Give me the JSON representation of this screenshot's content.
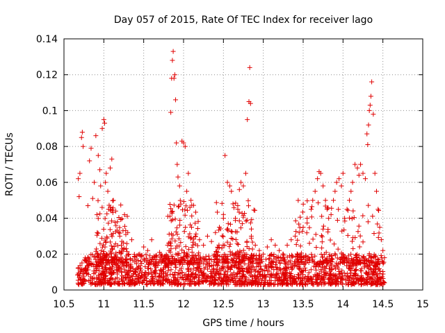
{
  "chart_data": {
    "type": "scatter",
    "title": "Day 057 of 2015, Rate Of TEC Index for receiver lago",
    "xlabel": "GPS time / hours",
    "ylabel": "ROTI / TECUs",
    "xlim": [
      10.5,
      15
    ],
    "ylim": [
      0,
      0.14
    ],
    "x_ticks": [
      10.5,
      11,
      11.5,
      12,
      12.5,
      13,
      13.5,
      14,
      14.5,
      15
    ],
    "x_tick_labels": [
      "10.5",
      "11",
      "11.5",
      "12",
      "12.5",
      "13",
      "13.5",
      "14",
      "14.5",
      "15"
    ],
    "y_ticks": [
      0,
      0.02,
      0.04,
      0.06,
      0.08,
      0.1,
      0.12,
      0.14
    ],
    "y_tick_labels": [
      "0",
      "0.02",
      "0.04",
      "0.06",
      "0.08",
      "0.1",
      "0.12",
      "0.14"
    ],
    "grid": true,
    "marker": "+",
    "color": "#e00000",
    "series": [
      {
        "name": "ROTI",
        "x": [
          10.68,
          10.69,
          10.7,
          10.72,
          10.73,
          10.74,
          10.8,
          10.82,
          10.84,
          10.86,
          10.88,
          10.9,
          10.93,
          10.95,
          10.96,
          10.98,
          11.0,
          11.01,
          11.02,
          11.03,
          11.05,
          11.06,
          11.08,
          11.1,
          11.12,
          11.15,
          11.17,
          11.2,
          11.22,
          11.3,
          11.35,
          11.45,
          11.5,
          11.55,
          11.6,
          11.7,
          11.8,
          11.84,
          11.85,
          11.86,
          11.87,
          11.88,
          11.89,
          11.9,
          11.91,
          11.92,
          11.93,
          11.95,
          11.98,
          12.0,
          12.02,
          12.04,
          12.06,
          12.08,
          12.1,
          12.15,
          12.2,
          12.25,
          12.3,
          12.35,
          12.4,
          12.45,
          12.5,
          12.52,
          12.55,
          12.58,
          12.6,
          12.62,
          12.65,
          12.68,
          12.7,
          12.72,
          12.75,
          12.78,
          12.8,
          12.82,
          12.83,
          12.84,
          12.85,
          12.9,
          12.95,
          13.0,
          13.05,
          13.1,
          13.15,
          13.2,
          13.25,
          13.3,
          13.35,
          13.4,
          13.45,
          13.5,
          13.55,
          13.6,
          13.62,
          13.65,
          13.68,
          13.7,
          13.72,
          13.75,
          13.78,
          13.8,
          13.82,
          13.85,
          13.88,
          13.9,
          13.92,
          13.95,
          13.98,
          14.0,
          14.02,
          14.05,
          14.08,
          14.1,
          14.12,
          14.15,
          14.18,
          14.2,
          14.22,
          14.25,
          14.28,
          14.3,
          14.31,
          14.32,
          14.33,
          14.34,
          14.35,
          14.36,
          14.38,
          14.4,
          14.42,
          14.44,
          14.46,
          14.48,
          14.5,
          14.52
        ],
        "y": [
          0.062,
          0.052,
          0.065,
          0.085,
          0.088,
          0.08,
          0.047,
          0.072,
          0.079,
          0.051,
          0.06,
          0.086,
          0.075,
          0.067,
          0.058,
          0.09,
          0.095,
          0.093,
          0.06,
          0.065,
          0.055,
          0.045,
          0.068,
          0.073,
          0.05,
          0.044,
          0.038,
          0.03,
          0.025,
          0.032,
          0.028,
          0.02,
          0.024,
          0.022,
          0.028,
          0.021,
          0.025,
          0.099,
          0.118,
          0.128,
          0.133,
          0.118,
          0.12,
          0.106,
          0.082,
          0.07,
          0.063,
          0.058,
          0.083,
          0.082,
          0.08,
          0.055,
          0.065,
          0.046,
          0.035,
          0.03,
          0.028,
          0.025,
          0.03,
          0.027,
          0.032,
          0.035,
          0.04,
          0.075,
          0.06,
          0.058,
          0.055,
          0.048,
          0.04,
          0.045,
          0.056,
          0.06,
          0.058,
          0.065,
          0.095,
          0.105,
          0.124,
          0.104,
          0.03,
          0.025,
          0.022,
          0.02,
          0.024,
          0.028,
          0.025,
          0.022,
          0.02,
          0.025,
          0.028,
          0.03,
          0.032,
          0.035,
          0.04,
          0.045,
          0.05,
          0.055,
          0.062,
          0.066,
          0.065,
          0.058,
          0.05,
          0.045,
          0.04,
          0.042,
          0.05,
          0.055,
          0.06,
          0.062,
          0.058,
          0.065,
          0.04,
          0.045,
          0.05,
          0.055,
          0.06,
          0.07,
          0.068,
          0.064,
          0.07,
          0.065,
          0.062,
          0.087,
          0.081,
          0.092,
          0.1,
          0.103,
          0.108,
          0.116,
          0.098,
          0.065,
          0.055,
          0.045,
          0.035,
          0.028,
          0.022,
          0.018
        ]
      }
    ],
    "background_band": {
      "x_range": [
        10.67,
        14.52
      ],
      "y_range": [
        0.003,
        0.02
      ],
      "note": "dense cluster of points"
    }
  }
}
